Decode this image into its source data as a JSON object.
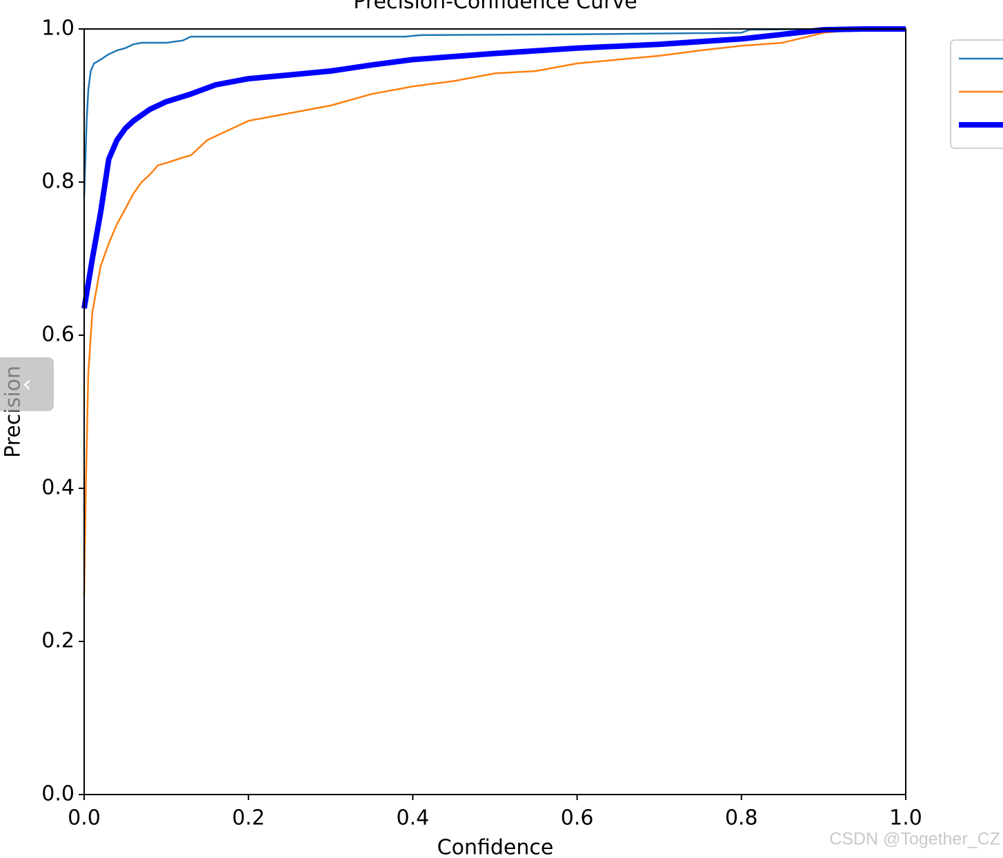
{
  "chart_data": {
    "type": "line",
    "title": "Precision-Confidence Curve",
    "x_label": "Confidence",
    "y_label": "Precision",
    "xlim": [
      0,
      1
    ],
    "ylim": [
      0,
      1
    ],
    "xticks": [
      {
        "value": 0,
        "label": "0.0"
      },
      0.2,
      0.4,
      0.6,
      0.8,
      {
        "value": 1,
        "label": "1.0"
      }
    ],
    "yticks": [
      {
        "value": 0,
        "label": "0.0"
      },
      0.2,
      0.4,
      0.6,
      0.8,
      {
        "value": 1,
        "label": "1.0"
      }
    ],
    "legend": "upper right outside",
    "series": [
      {
        "color": "#1f77b4",
        "width": 2.5,
        "x": [
          0,
          0.003,
          0.005,
          0.008,
          0.012,
          0.02,
          0.03,
          0.04,
          0.05,
          0.06,
          0.07,
          0.1,
          0.12,
          0.13,
          0.2,
          0.39,
          0.41,
          0.6,
          0.8,
          0.81,
          0.9,
          1.0
        ],
        "values": [
          0.78,
          0.88,
          0.92,
          0.945,
          0.955,
          0.96,
          0.967,
          0.972,
          0.975,
          0.98,
          0.982,
          0.982,
          0.985,
          0.99,
          0.99,
          0.99,
          0.992,
          0.993,
          0.995,
          0.999,
          1.0,
          1.0
        ]
      },
      {
        "color": "#ff7f0e",
        "width": 2.5,
        "x": [
          0,
          0.002,
          0.005,
          0.01,
          0.02,
          0.03,
          0.04,
          0.05,
          0.06,
          0.07,
          0.08,
          0.09,
          0.1,
          0.12,
          0.13,
          0.15,
          0.17,
          0.2,
          0.25,
          0.3,
          0.35,
          0.4,
          0.45,
          0.5,
          0.55,
          0.6,
          0.65,
          0.7,
          0.75,
          0.8,
          0.85,
          0.9,
          0.92,
          0.95,
          1.0
        ],
        "values": [
          0.26,
          0.4,
          0.55,
          0.63,
          0.69,
          0.72,
          0.745,
          0.765,
          0.785,
          0.8,
          0.81,
          0.822,
          0.825,
          0.832,
          0.835,
          0.855,
          0.865,
          0.88,
          0.89,
          0.9,
          0.915,
          0.925,
          0.932,
          0.942,
          0.945,
          0.955,
          0.96,
          0.965,
          0.972,
          0.978,
          0.982,
          0.995,
          0.997,
          1.0,
          1.0
        ]
      },
      {
        "color": "#0000ff",
        "width": 8,
        "x": [
          0,
          0.01,
          0.02,
          0.03,
          0.04,
          0.05,
          0.06,
          0.08,
          0.1,
          0.13,
          0.16,
          0.2,
          0.25,
          0.3,
          0.35,
          0.4,
          0.5,
          0.6,
          0.7,
          0.8,
          0.85,
          0.9,
          0.95,
          1.0
        ],
        "values": [
          0.635,
          0.7,
          0.76,
          0.83,
          0.855,
          0.87,
          0.88,
          0.895,
          0.905,
          0.915,
          0.927,
          0.935,
          0.94,
          0.945,
          0.953,
          0.96,
          0.968,
          0.975,
          0.98,
          0.987,
          0.993,
          0.999,
          1.0,
          1.0
        ]
      }
    ]
  },
  "watermark": "CSDN @Together_CZ",
  "overlay_button": "‹"
}
